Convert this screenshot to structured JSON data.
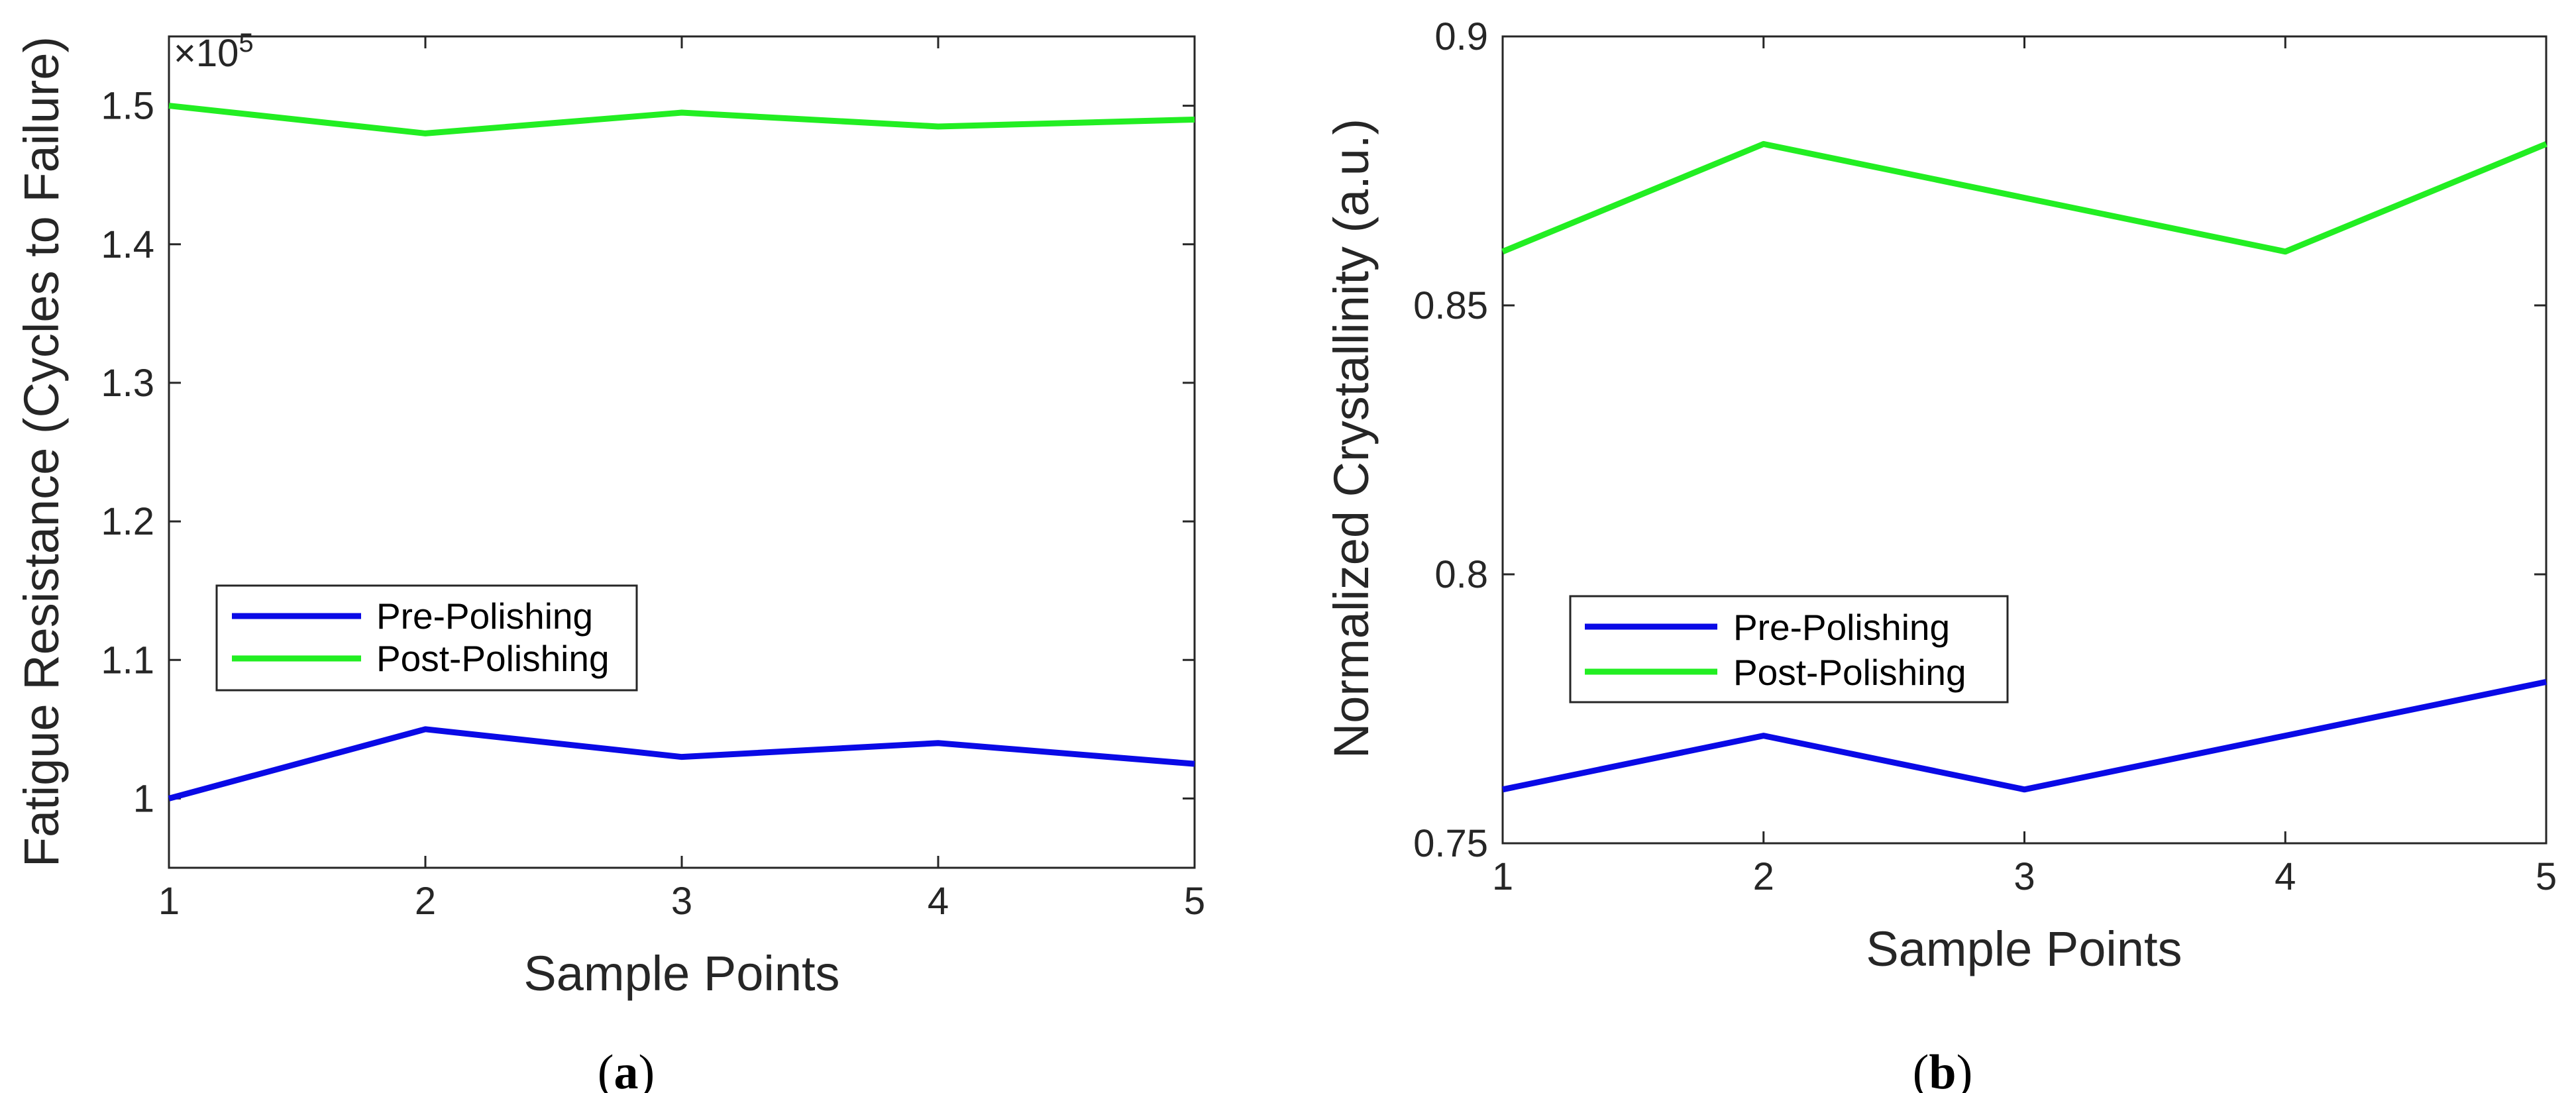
{
  "chart_data": [
    {
      "type": "line",
      "panel_label": "a",
      "x": [
        1,
        2,
        3,
        4,
        5
      ],
      "xlabel": "Sample Points",
      "ylabel": "Fatigue Resistance (Cycles to Failure)",
      "xlim": [
        1,
        5
      ],
      "ylim": [
        0.95,
        1.55
      ],
      "y_multiplier": "×10",
      "y_multiplier_exp": "5",
      "xticks": [
        "1",
        "2",
        "3",
        "4",
        "5"
      ],
      "yticks": [
        1.0,
        1.1,
        1.2,
        1.3,
        1.4,
        1.5
      ],
      "ytick_labels": [
        "1",
        "1.1",
        "1.2",
        "1.3",
        "1.4",
        "1.5"
      ],
      "grid": false,
      "legend_position": "middle-left",
      "series": [
        {
          "name": "Pre-Polishing",
          "color": "#0a0ae6",
          "values": [
            1.0,
            1.05,
            1.03,
            1.04,
            1.025
          ]
        },
        {
          "name": "Post-Polishing",
          "color": "#22ee22",
          "values": [
            1.5,
            1.48,
            1.495,
            1.485,
            1.49
          ]
        }
      ]
    },
    {
      "type": "line",
      "panel_label": "b",
      "x": [
        1,
        2,
        3,
        4,
        5
      ],
      "xlabel": "Sample Points",
      "ylabel": "Normalized Crystallinity (a.u.)",
      "xlim": [
        1,
        5
      ],
      "ylim": [
        0.75,
        0.9
      ],
      "xticks": [
        "1",
        "2",
        "3",
        "4",
        "5"
      ],
      "yticks": [
        0.75,
        0.8,
        0.85,
        0.9
      ],
      "ytick_labels": [
        "0.75",
        "0.8",
        "0.85",
        "0.9"
      ],
      "grid": false,
      "legend_position": "middle-left",
      "series": [
        {
          "name": "Pre-Polishing",
          "color": "#0a0ae6",
          "values": [
            0.76,
            0.77,
            0.76,
            0.77,
            0.78
          ]
        },
        {
          "name": "Post-Polishing",
          "color": "#22ee22",
          "values": [
            0.86,
            0.88,
            0.87,
            0.86,
            0.88
          ]
        }
      ]
    }
  ]
}
